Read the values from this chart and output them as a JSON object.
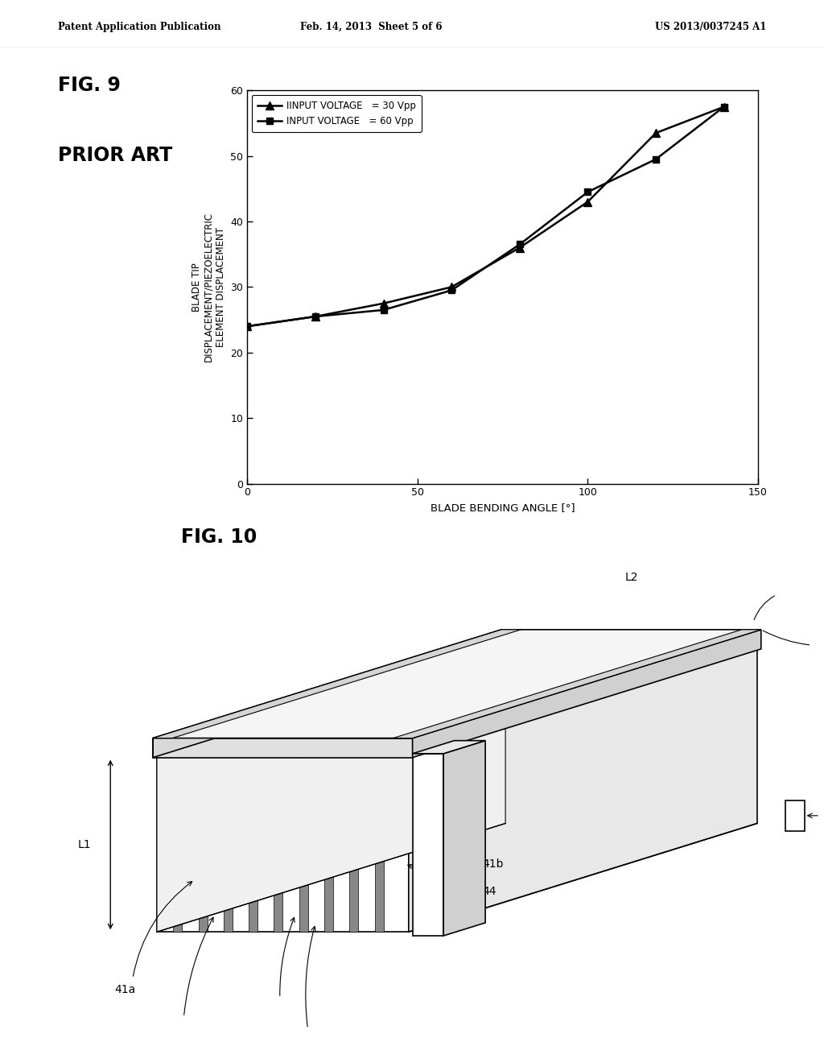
{
  "header_left": "Patent Application Publication",
  "header_center": "Feb. 14, 2013  Sheet 5 of 6",
  "header_right": "US 2013/0037245 A1",
  "fig9_label": "FIG. 9",
  "fig9_sublabel": "PRIOR ART",
  "fig10_label": "FIG. 10",
  "xlabel": "BLADE BENDING ANGLE [°]",
  "ylabel_line1": "BLADE TIP",
  "ylabel_line2": "DISPLACEMENT/PIEZOELECTRIC",
  "ylabel_line3": "ELEMENT DISPLACEMENT",
  "xlim": [
    0,
    150
  ],
  "ylim": [
    0,
    60
  ],
  "xticks": [
    0,
    50,
    100,
    150
  ],
  "yticks": [
    0,
    10,
    20,
    30,
    40,
    50,
    60
  ],
  "series1_x": [
    0,
    20,
    40,
    60,
    80,
    100,
    120,
    140
  ],
  "series1_y": [
    24.0,
    25.5,
    27.5,
    30.0,
    36.0,
    43.0,
    53.5,
    57.5
  ],
  "series2_x": [
    0,
    20,
    40,
    60,
    80,
    100,
    120,
    140
  ],
  "series2_y": [
    24.0,
    25.5,
    26.5,
    29.5,
    36.5,
    44.5,
    49.5,
    57.5
  ],
  "legend1": "IINPUT VOLTAGE   = 30 Vpp",
  "legend2": "INPUT VOLTAGE   = 60 Vpp",
  "bg_color": "#ffffff",
  "line_color": "#000000"
}
